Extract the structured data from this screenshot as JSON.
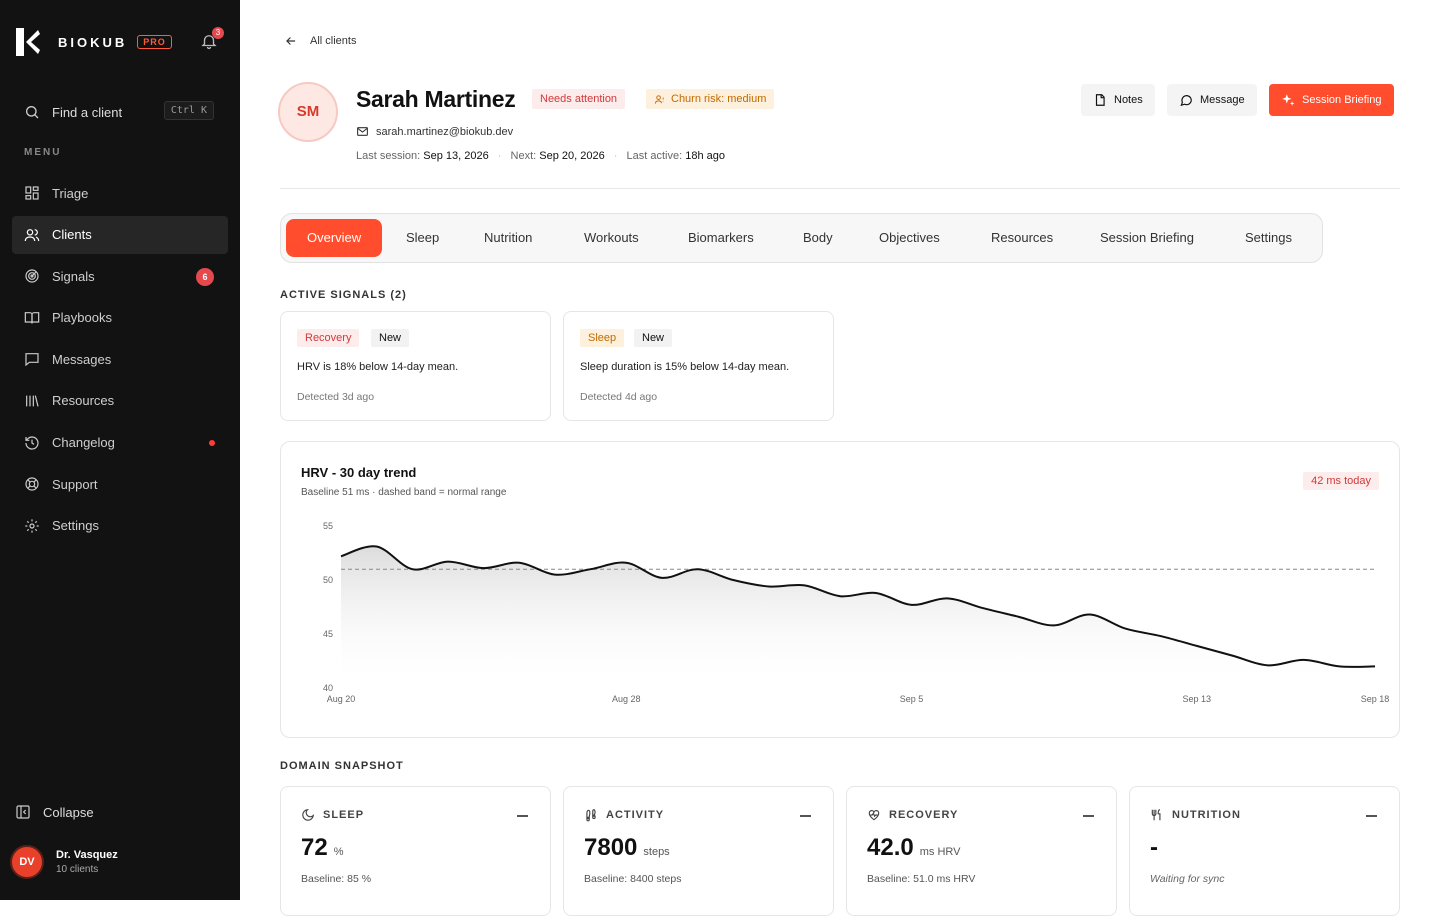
{
  "sidebar": {
    "brand": "BIOKUB",
    "plan_badge": "PRO",
    "notifications_count": "3",
    "search_label": "Find a client",
    "search_shortcut": "Ctrl K",
    "menu_label": "MENU",
    "items": [
      {
        "label": "Triage",
        "icon": "grid-icon"
      },
      {
        "label": "Clients",
        "icon": "users-icon",
        "active": true
      },
      {
        "label": "Signals",
        "icon": "radar-icon",
        "badge": "6"
      },
      {
        "label": "Playbooks",
        "icon": "book-icon"
      },
      {
        "label": "Messages",
        "icon": "message-icon"
      },
      {
        "label": "Resources",
        "icon": "library-icon"
      },
      {
        "label": "Changelog",
        "icon": "history-icon",
        "dot": true
      },
      {
        "label": "Support",
        "icon": "lifebuoy-icon"
      },
      {
        "label": "Settings",
        "icon": "gear-icon"
      }
    ],
    "collapse_label": "Collapse",
    "user": {
      "initials": "DV",
      "name": "Dr. Vasquez",
      "subtitle": "10 clients"
    }
  },
  "header": {
    "back_label": "All clients",
    "client": {
      "initials": "SM",
      "name": "Sarah Martinez",
      "status_tag": "Needs attention",
      "churn_tag": "Churn risk: medium",
      "email": "sarah.martinez@biokub.dev",
      "last_session_label": "Last session:",
      "last_session": "Sep 13, 2026",
      "next_label": "Next:",
      "next": "Sep 20, 2026",
      "last_active_label": "Last active:",
      "last_active": "18h ago"
    },
    "actions": {
      "notes": "Notes",
      "message": "Message",
      "briefing": "Session Briefing"
    }
  },
  "tabs": [
    "Overview",
    "Sleep",
    "Nutrition",
    "Workouts",
    "Biomarkers",
    "Body",
    "Objectives",
    "Resources",
    "Session Briefing",
    "Settings"
  ],
  "active_tab": "Overview",
  "signals": {
    "label": "ACTIVE SIGNALS (2)",
    "items": [
      {
        "category": "Recovery",
        "status": "New",
        "text": "HRV is 18% below 14-day mean.",
        "detected": "Detected 3d ago"
      },
      {
        "category": "Sleep",
        "status": "New",
        "text": "Sleep duration is 15% below 14-day mean.",
        "detected": "Detected 4d ago"
      }
    ]
  },
  "hrv": {
    "title": "HRV - 30 day trend",
    "subtitle": "Baseline 51 ms · dashed band = normal range",
    "today_badge": "42 ms today"
  },
  "chart_data": {
    "type": "area",
    "title": "HRV - 30 day trend",
    "ylim": [
      40,
      55
    ],
    "yticks": [
      55,
      50,
      45,
      40
    ],
    "xtick_labels": [
      "Aug 20",
      "Aug 28",
      "Sep 5",
      "Sep 13",
      "Sep 18"
    ],
    "baseline": 51,
    "x": [
      "Aug 20",
      "Aug 21",
      "Aug 22",
      "Aug 23",
      "Aug 24",
      "Aug 25",
      "Aug 26",
      "Aug 27",
      "Aug 28",
      "Aug 29",
      "Aug 30",
      "Aug 31",
      "Sep 1",
      "Sep 2",
      "Sep 3",
      "Sep 4",
      "Sep 5",
      "Sep 6",
      "Sep 7",
      "Sep 8",
      "Sep 9",
      "Sep 10",
      "Sep 11",
      "Sep 12",
      "Sep 13",
      "Sep 14",
      "Sep 15",
      "Sep 16",
      "Sep 17",
      "Sep 18"
    ],
    "values": [
      52.2,
      53.1,
      51.0,
      51.7,
      51.1,
      51.6,
      50.5,
      51.0,
      51.6,
      50.2,
      51.0,
      50.0,
      49.4,
      49.5,
      48.5,
      48.8,
      47.7,
      48.3,
      47.4,
      46.6,
      45.8,
      46.8,
      45.5,
      44.8,
      43.9,
      43.0,
      42.1,
      42.6,
      42.0,
      42.0
    ]
  },
  "snapshot": {
    "label": "DOMAIN SNAPSHOT",
    "cards": [
      {
        "title": "SLEEP",
        "icon": "moon-icon",
        "value": "72",
        "unit": "%",
        "baseline": "Baseline: 85 %"
      },
      {
        "title": "ACTIVITY",
        "icon": "footprints-icon",
        "value": "7800",
        "unit": "steps",
        "baseline": "Baseline: 8400 steps"
      },
      {
        "title": "RECOVERY",
        "icon": "heart-pulse-icon",
        "value": "42.0",
        "unit": "ms HRV",
        "baseline": "Baseline: 51.0 ms HRV"
      },
      {
        "title": "NUTRITION",
        "icon": "utensils-icon",
        "value": "-",
        "unit": "",
        "baseline": "Waiting for sync"
      }
    ]
  },
  "colors": {
    "accent": "#ff4d2e",
    "sidebar_bg": "#121212",
    "danger": "#e5484d",
    "warning_bg": "#fdf0dc"
  }
}
